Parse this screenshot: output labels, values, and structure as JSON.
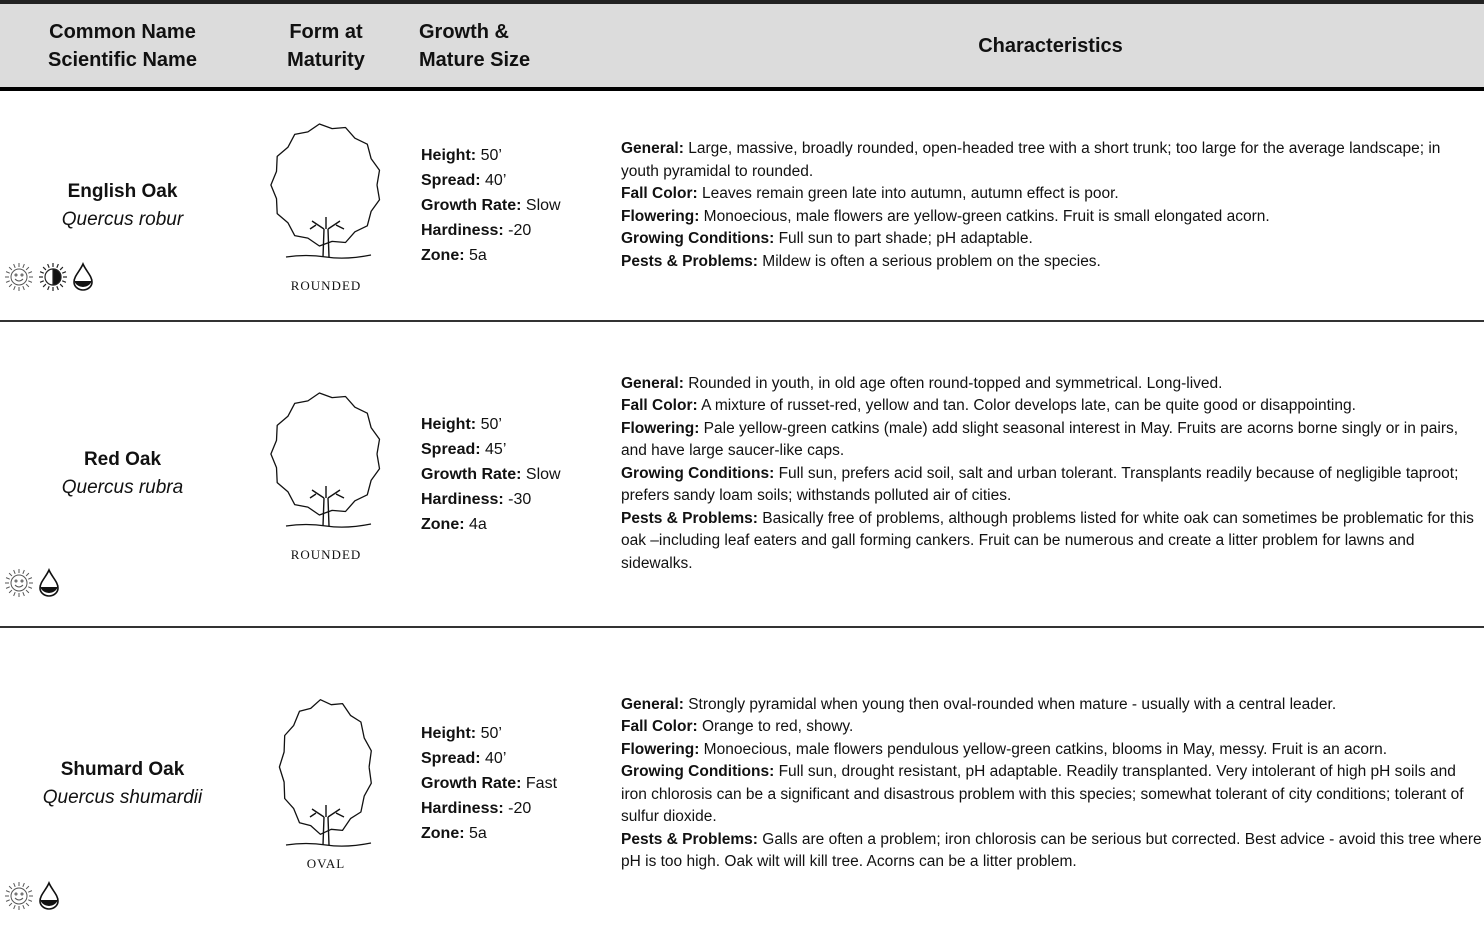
{
  "header": [
    [
      "Common Name",
      "Scientific Name"
    ],
    [
      "Form at",
      "Maturity"
    ],
    [
      "Growth &",
      "Mature Size"
    ],
    [
      "Characteristics"
    ]
  ],
  "rows": [
    {
      "common": "English Oak",
      "scientific": "Quercus robur",
      "form": "ROUNDED",
      "specs": [
        {
          "label": "Height:",
          "value": "50’"
        },
        {
          "label": "Spread:",
          "value": "40’"
        },
        {
          "label": "Growth Rate:",
          "value": "Slow"
        },
        {
          "label": "Hardiness:",
          "value": "-20"
        },
        {
          "label": "Zone:",
          "value": "5a"
        }
      ],
      "characteristics": [
        {
          "label": "General:",
          "text": "Large, massive, broadly rounded, open-headed tree with a short trunk; too large for the average landscape; in youth pyramidal to rounded."
        },
        {
          "label": "Fall Color:",
          "text": "Leaves remain green late into autumn, autumn effect is poor."
        },
        {
          "label": "Flowering:",
          "text": "Monoecious, male flowers are yellow-green catkins.  Fruit is small elongated acorn."
        },
        {
          "label": "Growing Conditions:",
          "text": "Full sun to part shade; pH adaptable."
        },
        {
          "label": "Pests & Problems:",
          "text": "Mildew is often a serious problem on the species."
        }
      ]
    },
    {
      "common": "Red Oak",
      "scientific": "Quercus rubra",
      "form": "ROUNDED",
      "specs": [
        {
          "label": "Height:",
          "value": "50’"
        },
        {
          "label": "Spread:",
          "value": "45’"
        },
        {
          "label": "Growth Rate:",
          "value": "Slow"
        },
        {
          "label": "Hardiness:",
          "value": "-30"
        },
        {
          "label": "Zone:",
          "value": "4a"
        }
      ],
      "characteristics": [
        {
          "label": "General:",
          "text": "Rounded in youth, in old age often round-topped and symmetrical.  Long-lived."
        },
        {
          "label": "Fall Color:",
          "text": "A mixture of russet-red, yellow and tan.  Color develops late, can be quite good or disappointing."
        },
        {
          "label": "Flowering:",
          "text": "Pale yellow-green catkins (male) add slight seasonal interest in May. Fruits are acorns borne singly or in pairs, and have large saucer-like caps."
        },
        {
          "label": "Growing Conditions:",
          "text": "Full sun, prefers acid soil, salt and urban tolerant. Transplants readily because of negligible taproot; prefers sandy loam soils; withstands polluted air of cities."
        },
        {
          "label": "Pests & Problems:",
          "text": "Basically free of problems, although problems listed for white oak can sometimes be problematic for this oak –including leaf eaters and gall forming cankers.  Fruit can be numerous and create a litter problem for lawns and sidewalks."
        }
      ]
    },
    {
      "common": "Shumard Oak",
      "scientific": "Quercus shumardii",
      "form": "OVAL",
      "specs": [
        {
          "label": "Height:",
          "value": "50’"
        },
        {
          "label": "Spread:",
          "value": "40’"
        },
        {
          "label": "Growth Rate:",
          "value": "Fast"
        },
        {
          "label": "Hardiness:",
          "value": "-20"
        },
        {
          "label": "Zone:",
          "value": "5a"
        }
      ],
      "characteristics": [
        {
          "label": "General:",
          "text": "Strongly pyramidal when young then oval-rounded when mature - usually with a central leader."
        },
        {
          "label": "Fall Color:",
          "text": "Orange to red, showy."
        },
        {
          "label": "Flowering:",
          "text": "Monoecious, male flowers pendulous yellow-green catkins, blooms in May, messy. Fruit is an acorn."
        },
        {
          "label": "Growing Conditions:",
          "text": "Full sun, drought resistant, pH adaptable. Readily transplanted. Very intolerant of high pH soils and iron chlorosis can be a significant and disastrous problem with this species; somewhat tolerant of city conditions; tolerant of sulfur dioxide."
        },
        {
          "label": "Pests & Problems:",
          "text": "Galls are often a problem; iron chlorosis can be serious but corrected. Best advice - avoid this tree where pH is too high.  Oak wilt will kill tree.  Acorns can be a litter problem."
        }
      ]
    }
  ]
}
